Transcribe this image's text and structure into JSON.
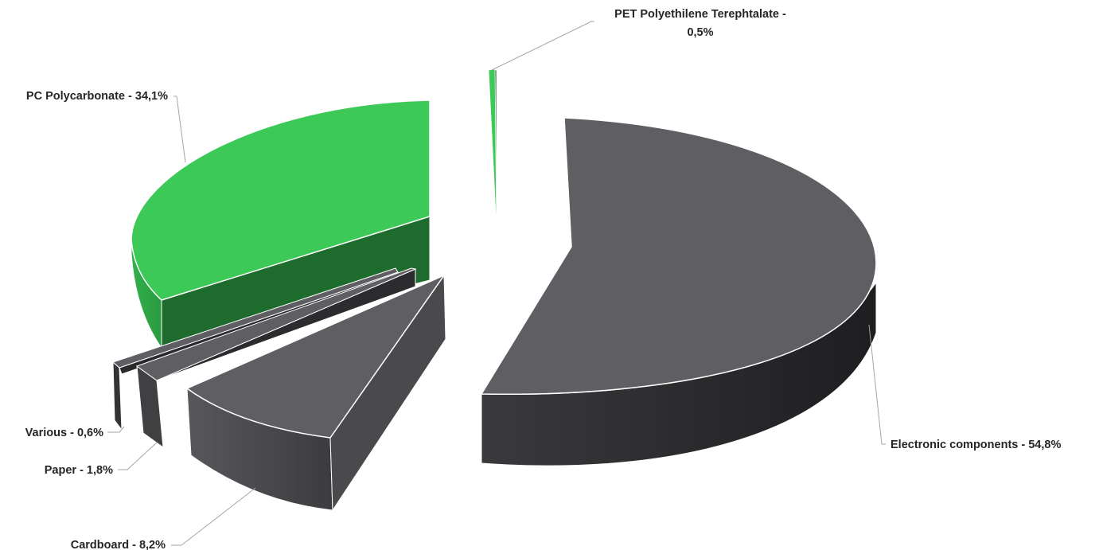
{
  "chart_data": {
    "type": "pie",
    "title": "",
    "style": "3d-exploded",
    "slices": [
      {
        "name": "PET Polyethilene Terephtalate",
        "label": "PET Polyethilene Terephtalate -",
        "value_label": "0,5%",
        "value": 0.5,
        "color": "#3cc957"
      },
      {
        "name": "Electronic components",
        "label": "Electronic components - 54,8%",
        "value": 54.8,
        "color": "#5f5f63"
      },
      {
        "name": "Cardboard",
        "label": "Cardboard - 8,2%",
        "value": 8.2,
        "color": "#5f5f63"
      },
      {
        "name": "Paper",
        "label": "Paper - 1,8%",
        "value": 1.8,
        "color": "#5f5f63"
      },
      {
        "name": "Various",
        "label": "Various - 0,6%",
        "value": 0.6,
        "color": "#5f5f63"
      },
      {
        "name": "PC Polycarbonate",
        "label": "PC Polycarbonate - 34,1%",
        "value": 34.1,
        "color": "#3cc957"
      }
    ]
  }
}
